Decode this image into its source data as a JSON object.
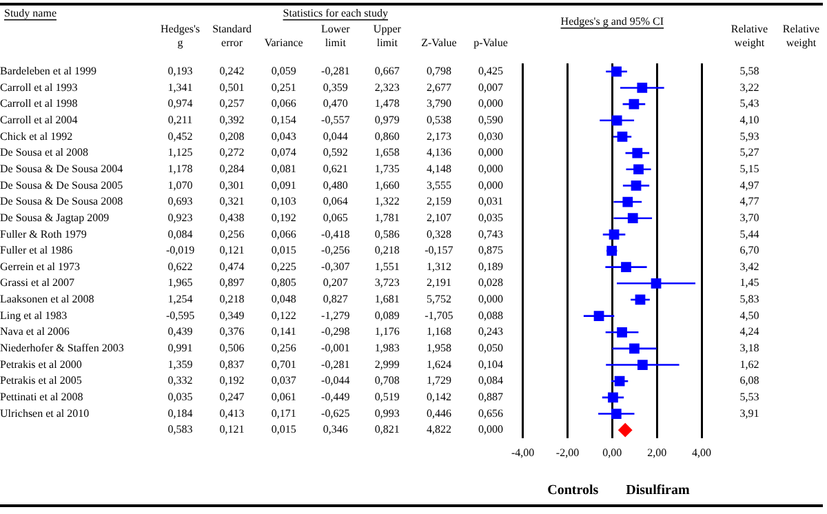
{
  "chart_data": [
    {
      "type": "heatmap",
      "title": "Statistics for each study",
      "ylabel": "Study name",
      "data_labels": true,
      "categories": [
        "Hedges's g",
        "Standard error",
        "Variance",
        "Lower limit",
        "Upper limit",
        "Z-Value",
        "p-Value",
        null,
        null,
        null,
        null,
        "Relative weight",
        "Relative weight"
      ],
      "y_categories": [
        "Bardeleben et al 1999",
        "Carroll et al 1993",
        "Carroll et al 1998",
        "Carroll et al 2004",
        "Chick et al 1992",
        "De Sousa et al 2008",
        "De Sousa & De Sousa 2004",
        "De Sousa & De Sousa 2005",
        "De Sousa & De Sousa 2008",
        "De Sousa & Jagtap 2009",
        "Fuller & Roth 1979",
        "Fuller et al 1986",
        "Gerrein et al 1973",
        "Grassi et al 2007",
        "Laaksonen et al 2008",
        "Ling et al 1983",
        "Nava et al 2006",
        "Niederhofer & Staffen 2003",
        "Petrakis et al 2000",
        "Petrakis et al 2005",
        "Pettinati et al 2008",
        "Ulrichsen et al 2010",
        null
      ],
      "cells": [
        [
          0.193,
          0.242,
          0.059,
          -0.281,
          0.667,
          0.798,
          0.425,
          null,
          null,
          null,
          null,
          5.58,
          null
        ],
        [
          1.341,
          0.501,
          0.251,
          0.359,
          2.323,
          2.677,
          0.007,
          null,
          null,
          null,
          null,
          3.22,
          null
        ],
        [
          0.974,
          0.257,
          0.066,
          0.47,
          1.478,
          3.79,
          0.0,
          null,
          null,
          null,
          null,
          5.43,
          null
        ],
        [
          0.211,
          0.392,
          0.154,
          -0.557,
          0.979,
          0.538,
          0.59,
          null,
          null,
          null,
          null,
          4.1,
          null
        ],
        [
          0.452,
          0.208,
          0.043,
          0.044,
          0.86,
          2.173,
          0.03,
          null,
          null,
          null,
          null,
          5.93,
          null
        ],
        [
          1.125,
          0.272,
          0.074,
          0.592,
          1.658,
          4.136,
          0.0,
          null,
          null,
          null,
          null,
          5.27,
          null
        ],
        [
          1.178,
          0.284,
          0.081,
          0.621,
          1.735,
          4.148,
          0.0,
          null,
          null,
          null,
          null,
          5.15,
          null
        ],
        [
          1.07,
          0.301,
          0.091,
          0.48,
          1.66,
          3.555,
          0.0,
          null,
          null,
          null,
          null,
          4.97,
          null
        ],
        [
          0.693,
          0.321,
          0.103,
          0.064,
          1.322,
          2.159,
          0.031,
          null,
          null,
          null,
          null,
          4.77,
          null
        ],
        [
          0.923,
          0.438,
          0.192,
          0.065,
          1.781,
          2.107,
          0.035,
          null,
          null,
          null,
          null,
          3.7,
          null
        ],
        [
          0.084,
          0.256,
          0.066,
          -0.418,
          0.586,
          0.328,
          0.743,
          null,
          null,
          null,
          null,
          5.44,
          null
        ],
        [
          -0.019,
          0.121,
          0.015,
          -0.256,
          0.218,
          -0.157,
          0.875,
          null,
          null,
          null,
          null,
          6.7,
          null
        ],
        [
          0.622,
          0.474,
          0.225,
          -0.307,
          1.551,
          1.312,
          0.189,
          null,
          null,
          null,
          null,
          3.42,
          null
        ],
        [
          1.965,
          0.897,
          0.805,
          0.207,
          3.723,
          2.191,
          0.028,
          null,
          null,
          null,
          null,
          1.45,
          null
        ],
        [
          1.254,
          0.218,
          0.048,
          0.827,
          1.681,
          5.752,
          0.0,
          null,
          null,
          null,
          null,
          5.83,
          null
        ],
        [
          -0.595,
          0.349,
          0.122,
          -1.279,
          0.089,
          -1.705,
          0.088,
          null,
          null,
          null,
          null,
          4.5,
          null
        ],
        [
          0.439,
          0.376,
          0.141,
          -0.298,
          1.176,
          1.168,
          0.243,
          null,
          null,
          null,
          null,
          4.24,
          null
        ],
        [
          0.991,
          0.506,
          0.256,
          -0.001,
          1.983,
          1.958,
          0.05,
          null,
          null,
          null,
          null,
          3.18,
          null
        ],
        [
          1.359,
          0.837,
          0.701,
          -0.281,
          2.999,
          1.624,
          0.104,
          null,
          null,
          null,
          null,
          1.62,
          null
        ],
        [
          0.332,
          0.192,
          0.037,
          -0.044,
          0.708,
          1.729,
          0.084,
          null,
          null,
          null,
          null,
          6.08,
          null
        ],
        [
          0.035,
          0.247,
          0.061,
          -0.449,
          0.519,
          0.142,
          0.887,
          null,
          null,
          null,
          null,
          5.53,
          null
        ],
        [
          0.184,
          0.413,
          0.171,
          -0.625,
          0.993,
          0.446,
          0.656,
          null,
          null,
          null,
          null,
          3.91,
          null
        ],
        [
          0.583,
          0.121,
          0.015,
          0.346,
          0.821,
          4.822,
          0.0,
          null,
          null,
          null,
          null,
          null,
          null
        ]
      ],
      "cell_labels": [
        [
          "0,193",
          "0,242",
          "0,059",
          "-0,281",
          "0,667",
          "0,798",
          "0,425",
          null,
          null,
          null,
          null,
          "5,58",
          null
        ],
        [
          "1,341",
          "0,501",
          "0,251",
          "0,359",
          "2,323",
          "2,677",
          "0,007",
          null,
          null,
          null,
          null,
          "3,22",
          null
        ],
        [
          "0,974",
          "0,257",
          "0,066",
          "0,470",
          "1,478",
          "3,790",
          "0,000",
          null,
          null,
          null,
          null,
          "5,43",
          null
        ],
        [
          "0,211",
          "0,392",
          "0,154",
          "-0,557",
          "0,979",
          "0,538",
          "0,590",
          null,
          null,
          null,
          null,
          "4,10",
          null
        ],
        [
          "0,452",
          "0,208",
          "0,043",
          "0,044",
          "0,860",
          "2,173",
          "0,030",
          null,
          null,
          null,
          null,
          "5,93",
          null
        ],
        [
          "1,125",
          "0,272",
          "0,074",
          "0,592",
          "1,658",
          "4,136",
          "0,000",
          null,
          null,
          null,
          null,
          "5,27",
          null
        ],
        [
          "1,178",
          "0,284",
          "0,081",
          "0,621",
          "1,735",
          "4,148",
          "0,000",
          null,
          null,
          null,
          null,
          "5,15",
          null
        ],
        [
          "1,070",
          "0,301",
          "0,091",
          "0,480",
          "1,660",
          "3,555",
          "0,000",
          null,
          null,
          null,
          null,
          "4,97",
          null
        ],
        [
          "0,693",
          "0,321",
          "0,103",
          "0,064",
          "1,322",
          "2,159",
          "0,031",
          null,
          null,
          null,
          null,
          "4,77",
          null
        ],
        [
          "0,923",
          "0,438",
          "0,192",
          "0,065",
          "1,781",
          "2,107",
          "0,035",
          null,
          null,
          null,
          null,
          "3,70",
          null
        ],
        [
          "0,084",
          "0,256",
          "0,066",
          "-0,418",
          "0,586",
          "0,328",
          "0,743",
          null,
          null,
          null,
          null,
          "5,44",
          null
        ],
        [
          "-0,019",
          "0,121",
          "0,015",
          "-0,256",
          "0,218",
          "-0,157",
          "0,875",
          null,
          null,
          null,
          null,
          "6,70",
          null
        ],
        [
          "0,622",
          "0,474",
          "0,225",
          "-0,307",
          "1,551",
          "1,312",
          "0,189",
          null,
          null,
          null,
          null,
          "3,42",
          null
        ],
        [
          "1,965",
          "0,897",
          "0,805",
          "0,207",
          "3,723",
          "2,191",
          "0,028",
          null,
          null,
          null,
          null,
          "1,45",
          null
        ],
        [
          "1,254",
          "0,218",
          "0,048",
          "0,827",
          "1,681",
          "5,752",
          "0,000",
          null,
          null,
          null,
          null,
          "5,83",
          null
        ],
        [
          "-0,595",
          "0,349",
          "0,122",
          "-1,279",
          "0,089",
          "-1,705",
          "0,088",
          null,
          null,
          null,
          null,
          "4,50",
          null
        ],
        [
          "0,439",
          "0,376",
          "0,141",
          "-0,298",
          "1,176",
          "1,168",
          "0,243",
          null,
          null,
          null,
          null,
          "4,24",
          null
        ],
        [
          "0,991",
          "0,506",
          "0,256",
          "-0,001",
          "1,983",
          "1,958",
          "0,050",
          null,
          null,
          null,
          null,
          "3,18",
          null
        ],
        [
          "1,359",
          "0,837",
          "0,701",
          "-0,281",
          "2,999",
          "1,624",
          "0,104",
          null,
          null,
          null,
          null,
          "1,62",
          null
        ],
        [
          "0,332",
          "0,192",
          "0,037",
          "-0,044",
          "0,708",
          "1,729",
          "0,084",
          null,
          null,
          null,
          null,
          "6,08",
          null
        ],
        [
          "0,035",
          "0,247",
          "0,061",
          "-0,449",
          "0,519",
          "0,142",
          "0,887",
          null,
          null,
          null,
          null,
          "5,53",
          null
        ],
        [
          "0,184",
          "0,413",
          "0,171",
          "-0,625",
          "0,993",
          "0,446",
          "0,656",
          null,
          null,
          null,
          null,
          "3,91",
          null
        ],
        [
          "0,583",
          "0,121",
          "0,015",
          "0,346",
          "0,821",
          "4,822",
          "0,000",
          null,
          null,
          null,
          null,
          null,
          null
        ]
      ]
    },
    {
      "type": "scatter",
      "orientation": "horizontal",
      "title": "Hedges's g and 95% CI",
      "grid": "x",
      "categories": [
        null,
        null,
        null,
        null,
        null,
        null,
        null,
        null,
        null,
        null,
        null,
        null,
        null,
        null,
        null,
        null,
        null,
        null,
        null,
        null,
        null,
        null,
        null
      ],
      "xlim": [
        -4,
        4
      ],
      "xticks": [
        {
          "value": -4,
          "label": "-4,00"
        },
        {
          "value": -2,
          "label": "-2,00"
        },
        {
          "value": 0,
          "label": "0,00"
        },
        {
          "value": 2,
          "label": "2,00"
        },
        {
          "value": 4,
          "label": "4,00"
        }
      ],
      "annotations": [
        "Controls",
        "Disulfiram"
      ],
      "series": [
        {
          "color": "#0000ff",
          "marker": "square",
          "values": [
            0.193,
            1.341,
            0.974,
            0.211,
            0.452,
            1.125,
            1.178,
            1.07,
            0.693,
            0.923,
            0.084,
            -0.019,
            0.622,
            1.965,
            1.254,
            -0.595,
            0.439,
            0.991,
            1.359,
            0.332,
            0.035,
            0.184,
            null
          ],
          "errors": [
            [
              -0.281,
              0.667
            ],
            [
              0.359,
              2.323
            ],
            [
              0.47,
              1.478
            ],
            [
              -0.557,
              0.979
            ],
            [
              0.044,
              0.86
            ],
            [
              0.592,
              1.658
            ],
            [
              0.621,
              1.735
            ],
            [
              0.48,
              1.66
            ],
            [
              0.064,
              1.322
            ],
            [
              0.065,
              1.781
            ],
            [
              -0.418,
              0.586
            ],
            [
              -0.256,
              0.218
            ],
            [
              -0.307,
              1.551
            ],
            [
              0.207,
              3.723
            ],
            [
              0.827,
              1.681
            ],
            [
              -1.279,
              0.089
            ],
            [
              -0.298,
              1.176
            ],
            [
              -0.001,
              1.983
            ],
            [
              -0.281,
              2.999
            ],
            [
              -0.044,
              0.708
            ],
            [
              -0.449,
              0.519
            ],
            [
              -0.625,
              0.993
            ],
            null
          ]
        },
        {
          "color": "#ff0000",
          "marker": "diamond",
          "values": [
            null,
            null,
            null,
            null,
            null,
            null,
            null,
            null,
            null,
            null,
            null,
            null,
            null,
            null,
            null,
            null,
            null,
            null,
            null,
            null,
            null,
            null,
            0.583
          ]
        }
      ]
    }
  ]
}
